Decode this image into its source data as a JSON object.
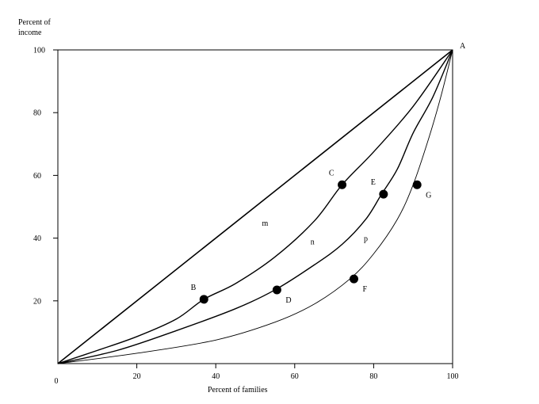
{
  "chart_data": {
    "type": "line",
    "ylabel_lines": [
      "Percent of",
      "income"
    ],
    "xlabel": "Percent of families",
    "xlim": [
      0,
      100
    ],
    "ylim": [
      0,
      100
    ],
    "x_ticks": [
      0,
      20,
      40,
      60,
      80,
      100
    ],
    "y_ticks": [
      20,
      40,
      60,
      80,
      100
    ],
    "grid": false,
    "curves": [
      {
        "name": "",
        "points": [
          [
            0,
            0
          ],
          [
            100,
            100
          ]
        ],
        "stroke_width": 1.6
      },
      {
        "name": "",
        "points": [
          [
            0,
            0
          ],
          [
            10,
            4.2
          ],
          [
            20,
            8.6
          ],
          [
            30,
            14.2
          ],
          [
            37,
            20.5
          ],
          [
            45,
            25.5
          ],
          [
            55,
            34
          ],
          [
            65,
            45.5
          ],
          [
            72,
            57
          ],
          [
            80,
            67.5
          ],
          [
            90,
            82
          ],
          [
            100,
            100
          ]
        ],
        "stroke_width": 1.4
      },
      {
        "name": "",
        "points": [
          [
            0,
            0
          ],
          [
            15,
            4.2
          ],
          [
            30,
            10.5
          ],
          [
            45,
            17.5
          ],
          [
            55,
            23.5
          ],
          [
            65,
            31.5
          ],
          [
            72,
            38
          ],
          [
            78,
            46
          ],
          [
            82,
            54
          ],
          [
            86,
            62
          ],
          [
            90,
            73.5
          ],
          [
            95,
            85
          ],
          [
            100,
            100
          ]
        ],
        "stroke_width": 1.4
      },
      {
        "name": "",
        "points": [
          [
            0,
            0
          ],
          [
            20,
            3.3
          ],
          [
            40,
            7.5
          ],
          [
            55,
            13.2
          ],
          [
            65,
            19
          ],
          [
            74,
            27
          ],
          [
            80,
            35
          ],
          [
            86,
            46
          ],
          [
            90,
            57
          ],
          [
            94,
            72
          ],
          [
            97,
            85
          ],
          [
            100,
            100
          ]
        ],
        "stroke_width": 0.9
      }
    ],
    "points": [
      {
        "label": "B",
        "x": 37,
        "y": 20.5,
        "label_pos": "above-left"
      },
      {
        "label": "C",
        "x": 72,
        "y": 57,
        "label_pos": "above-left"
      },
      {
        "label": "D",
        "x": 55.5,
        "y": 23.5,
        "label_pos": "below-right"
      },
      {
        "label": "E",
        "x": 82.5,
        "y": 54,
        "label_pos": "above-left"
      },
      {
        "label": "F",
        "x": 75,
        "y": 27,
        "label_pos": "below-right"
      },
      {
        "label": "G",
        "x": 91,
        "y": 57,
        "label_pos": "below-right"
      }
    ],
    "annotations": [
      {
        "text": "A",
        "x": 100,
        "y": 100,
        "pos": "above-right"
      },
      {
        "text": "m",
        "x": 52.5,
        "y": 44
      },
      {
        "text": "n",
        "x": 64.5,
        "y": 38
      },
      {
        "text": "p",
        "x": 78,
        "y": 39
      }
    ]
  }
}
